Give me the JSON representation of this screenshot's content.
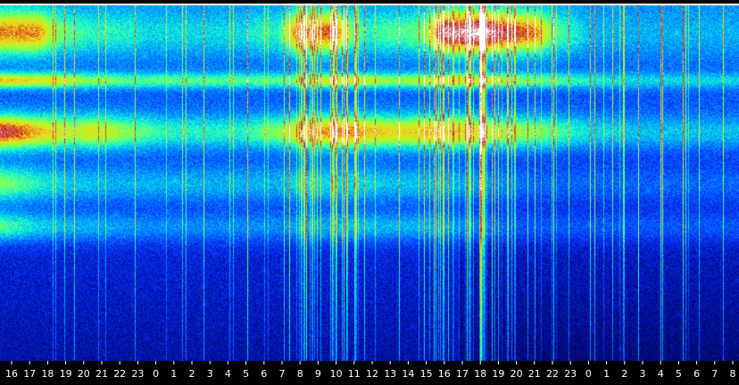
{
  "chart_data": {
    "type": "heatmap",
    "title": "",
    "xlabel": "",
    "ylabel": "",
    "x_tick_labels": [
      "16",
      "17",
      "18",
      "19",
      "20",
      "21",
      "22",
      "23",
      "0",
      "1",
      "2",
      "3",
      "4",
      "5",
      "6",
      "7",
      "8",
      "9",
      "10",
      "11",
      "12",
      "13",
      "14",
      "15",
      "16",
      "17",
      "18",
      "19",
      "20",
      "21",
      "22",
      "23",
      "0",
      "1",
      "2",
      "3",
      "4",
      "5",
      "6",
      "7",
      "8"
    ],
    "colorscale": [
      "#00063a",
      "#0010a8",
      "#0a3cff",
      "#00a0ff",
      "#16ffd0",
      "#a8ff2a",
      "#ffd21a",
      "#b8132a",
      "#ffffff"
    ],
    "horizontal_bands": [
      {
        "row_from": 0.02,
        "row_to": 0.13,
        "intensity": [
          0.8,
          0.8,
          0.8,
          0.6,
          0.55,
          0.5,
          0.5,
          0.5,
          0.45,
          0.45,
          0.45,
          0.45,
          0.45,
          0.45,
          0.5,
          0.5,
          0.8,
          0.8,
          0.85,
          0.6,
          0.5,
          0.55,
          0.55,
          0.6,
          0.95,
          0.95,
          1.0,
          0.9,
          0.85,
          0.8,
          0.55,
          0.5,
          0.4,
          0.4,
          0.4,
          0.4,
          0.4,
          0.4,
          0.4,
          0.4,
          0.4
        ]
      },
      {
        "row_from": 0.19,
        "row_to": 0.23,
        "intensity": [
          0.75,
          0.72,
          0.7,
          0.7,
          0.65,
          0.6,
          0.58,
          0.55,
          0.55,
          0.55,
          0.55,
          0.55,
          0.55,
          0.55,
          0.55,
          0.55,
          0.6,
          0.65,
          0.7,
          0.68,
          0.65,
          0.62,
          0.62,
          0.65,
          0.7,
          0.7,
          0.68,
          0.65,
          0.6,
          0.58,
          0.55,
          0.52,
          0.5,
          0.48,
          0.45,
          0.45,
          0.45,
          0.45,
          0.45,
          0.45,
          0.45
        ]
      },
      {
        "row_from": 0.31,
        "row_to": 0.4,
        "intensity": [
          0.9,
          0.85,
          0.75,
          0.7,
          0.65,
          0.7,
          0.65,
          0.6,
          0.55,
          0.5,
          0.5,
          0.5,
          0.5,
          0.5,
          0.55,
          0.6,
          0.7,
          0.75,
          0.8,
          0.8,
          0.75,
          0.72,
          0.72,
          0.75,
          0.75,
          0.72,
          0.7,
          0.65,
          0.62,
          0.6,
          0.55,
          0.5,
          0.45,
          0.45,
          0.42,
          0.42,
          0.42,
          0.42,
          0.42,
          0.42,
          0.42
        ]
      },
      {
        "row_from": 0.45,
        "row_to": 0.55,
        "intensity": [
          0.6,
          0.55,
          0.5,
          0.45,
          0.42,
          0.42,
          0.4,
          0.4,
          0.4,
          0.4,
          0.4,
          0.4,
          0.4,
          0.4,
          0.4,
          0.4,
          0.45,
          0.45,
          0.45,
          0.45,
          0.45,
          0.42,
          0.42,
          0.42,
          0.4,
          0.38,
          0.36,
          0.34,
          0.32,
          0.3,
          0.3,
          0.3,
          0.3,
          0.3,
          0.3,
          0.3,
          0.3,
          0.3,
          0.3,
          0.3,
          0.3
        ]
      },
      {
        "row_from": 0.58,
        "row_to": 0.66,
        "intensity": [
          0.55,
          0.5,
          0.45,
          0.42,
          0.4,
          0.4,
          0.38,
          0.36,
          0.35,
          0.35,
          0.35,
          0.35,
          0.35,
          0.35,
          0.35,
          0.35,
          0.38,
          0.4,
          0.4,
          0.42,
          0.42,
          0.4,
          0.4,
          0.4,
          0.38,
          0.35,
          0.32,
          0.3,
          0.28,
          0.28,
          0.28,
          0.28,
          0.28,
          0.28,
          0.28,
          0.28,
          0.28,
          0.28,
          0.28,
          0.28,
          0.28
        ]
      }
    ],
    "background_intensity": {
      "top": 0.35,
      "bottom": 0.12
    },
    "grid": false,
    "legend": "none"
  }
}
